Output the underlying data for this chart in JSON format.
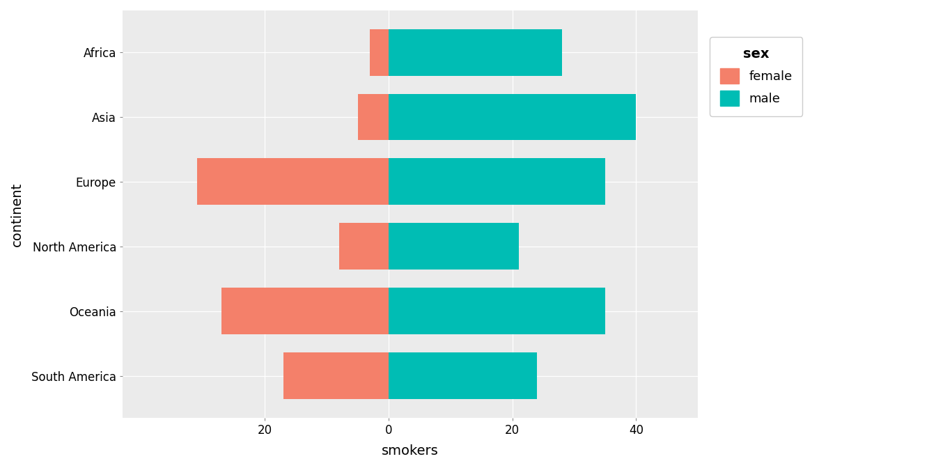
{
  "continents": [
    "Africa",
    "Asia",
    "Europe",
    "North America",
    "Oceania",
    "South America"
  ],
  "female_values": [
    -3,
    -5,
    -31,
    -8,
    -27,
    -17
  ],
  "male_values": [
    28,
    40,
    35,
    21,
    35,
    24
  ],
  "female_color": "#F4806A",
  "male_color": "#00BDB4",
  "background_color": "#EBEBEB",
  "panel_background": "#EBEBEB",
  "xlabel": "smokers",
  "ylabel": "continent",
  "legend_title": "sex",
  "legend_labels": [
    "female",
    "male"
  ],
  "xlim": [
    -43,
    50
  ],
  "xticks": [
    -20,
    0,
    20,
    40
  ],
  "title_fontsize": 14,
  "axis_label_fontsize": 14,
  "tick_fontsize": 12,
  "legend_fontsize": 13
}
